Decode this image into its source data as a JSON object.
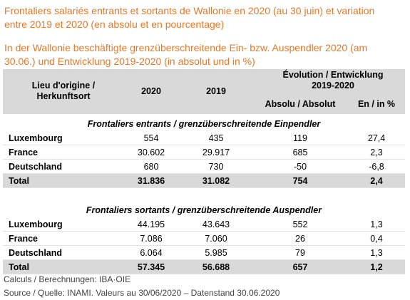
{
  "title": "Frontaliers salariés entrants et sortants de Wallonie en 2020 (au 30 juin) et variation entre 2019 et 2020 (en absolu et en pourcentage)",
  "subtitle": "In der Wallonie beschäftigte grenzüberschreitende Ein- bzw. Auspendler 2020 (am 30.06.) und Entwicklung 2019-2020 (in absolut und in %)",
  "table": {
    "header": {
      "origin": "Lieu d'origine / Herkunftsort",
      "col_2020": "2020",
      "col_2019": "2019",
      "evolution": "Évolution / Entwicklung 2019-2020",
      "absolute": "Absolu / Absolut",
      "percent": "En / in %"
    },
    "sections": [
      {
        "title": "Frontaliers entrants / grenzüberschreitende Einpendler",
        "rows": [
          [
            "Luxembourg",
            "554",
            "435",
            "119",
            "27,4"
          ],
          [
            "France",
            "30.602",
            "29.917",
            "685",
            "2,3"
          ],
          [
            "Deutschland",
            "680",
            "730",
            "-50",
            "-6,8"
          ]
        ],
        "total": [
          "Total",
          "31.836",
          "31.082",
          "754",
          "2,4"
        ]
      },
      {
        "title": "Frontaliers sortants / grenzüberschreitende Auspendler",
        "rows": [
          [
            "Luxembourg",
            "44.195",
            "43.643",
            "552",
            "1,3"
          ],
          [
            "France",
            "7.086",
            "7.060",
            "26",
            "0,4"
          ],
          [
            "Deutschland",
            "6.064",
            "5.985",
            "79",
            "1,3"
          ]
        ],
        "total": [
          "Total",
          "57.345",
          "56.688",
          "657",
          "1,2"
        ]
      }
    ]
  },
  "footer": [
    "Calculs / Berechnungen: IBA·OIE",
    "Source / Quelle: INAMI. Valeurs au 30/06/2020 – Datenstand 30.06.2020"
  ]
}
